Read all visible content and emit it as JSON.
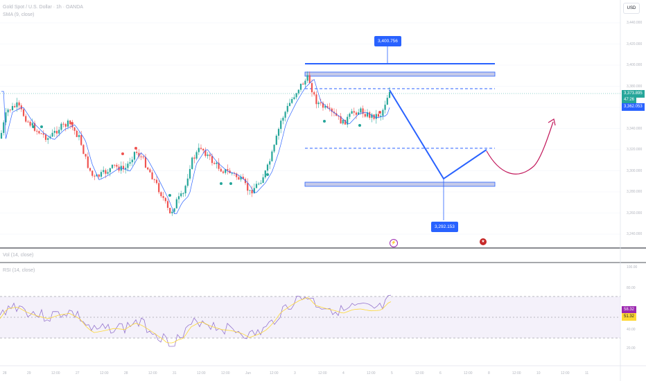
{
  "header": {
    "symbol_line": "Gold Spot / U.S. Dollar · 1h · OANDA",
    "indicator_line": "SMA (9, close)",
    "currency_button": "USD"
  },
  "price_axis": {
    "labels": [
      "3,440.000",
      "3,420.000",
      "3,400.000",
      "3,380.000",
      "3,360.000",
      "3,340.000",
      "3,320.000",
      "3,300.000",
      "3,280.000",
      "3,260.000",
      "3,240.000"
    ],
    "ticks": [
      3440,
      3420,
      3400,
      3380,
      3360,
      3340,
      3320,
      3300,
      3280,
      3260,
      3240
    ],
    "current_price": "3,373.895",
    "countdown": "47:26",
    "sma_value": "3,362.053"
  },
  "rsi_axis": {
    "labels": [
      "100.00",
      "80.00",
      "40.00",
      "20.00"
    ],
    "ticks": [
      100,
      80,
      40,
      20
    ],
    "rsi_value": "58.32",
    "rsi_ma_value": "51.32"
  },
  "panes": {
    "volume_legend": "Vol (14, close)",
    "rsi_legend": "RSI (14, close)"
  },
  "annotations": {
    "upper_target": "3,400.756",
    "lower_target": "3,292.153"
  },
  "time_axis": [
    {
      "label": "28"
    },
    {
      "label": "29"
    },
    {
      "label": "12:00"
    },
    {
      "label": "27"
    },
    {
      "label": "12:00"
    },
    {
      "label": "28"
    },
    {
      "label": "12:00"
    },
    {
      "label": "31"
    },
    {
      "label": "12:00"
    },
    {
      "label": "12:00"
    },
    {
      "label": "Jun"
    },
    {
      "label": "12:00"
    },
    {
      "label": "3"
    },
    {
      "label": "12:00"
    },
    {
      "label": "4"
    },
    {
      "label": "12:00"
    },
    {
      "label": "5"
    },
    {
      "label": "12:00"
    },
    {
      "label": "6"
    },
    {
      "label": "12:00"
    },
    {
      "label": "8"
    },
    {
      "label": "12:00"
    },
    {
      "label": "10"
    },
    {
      "label": "12:00"
    },
    {
      "label": "11"
    }
  ],
  "colors": {
    "up": "#26a69a",
    "down": "#ef5350",
    "sma": "#2962ff",
    "projection": "#2962ff",
    "curve": "#c2185b",
    "rsi": "#9575cd",
    "rsi_ma": "#fdd835",
    "current_tag": "#26a69a",
    "sma_tag": "#2962ff",
    "rsi_tag": "#9c27b0",
    "rsi_ma_tag": "#fdd835"
  },
  "icons": [
    "lightning-icon",
    "us-flag-icon"
  ]
}
